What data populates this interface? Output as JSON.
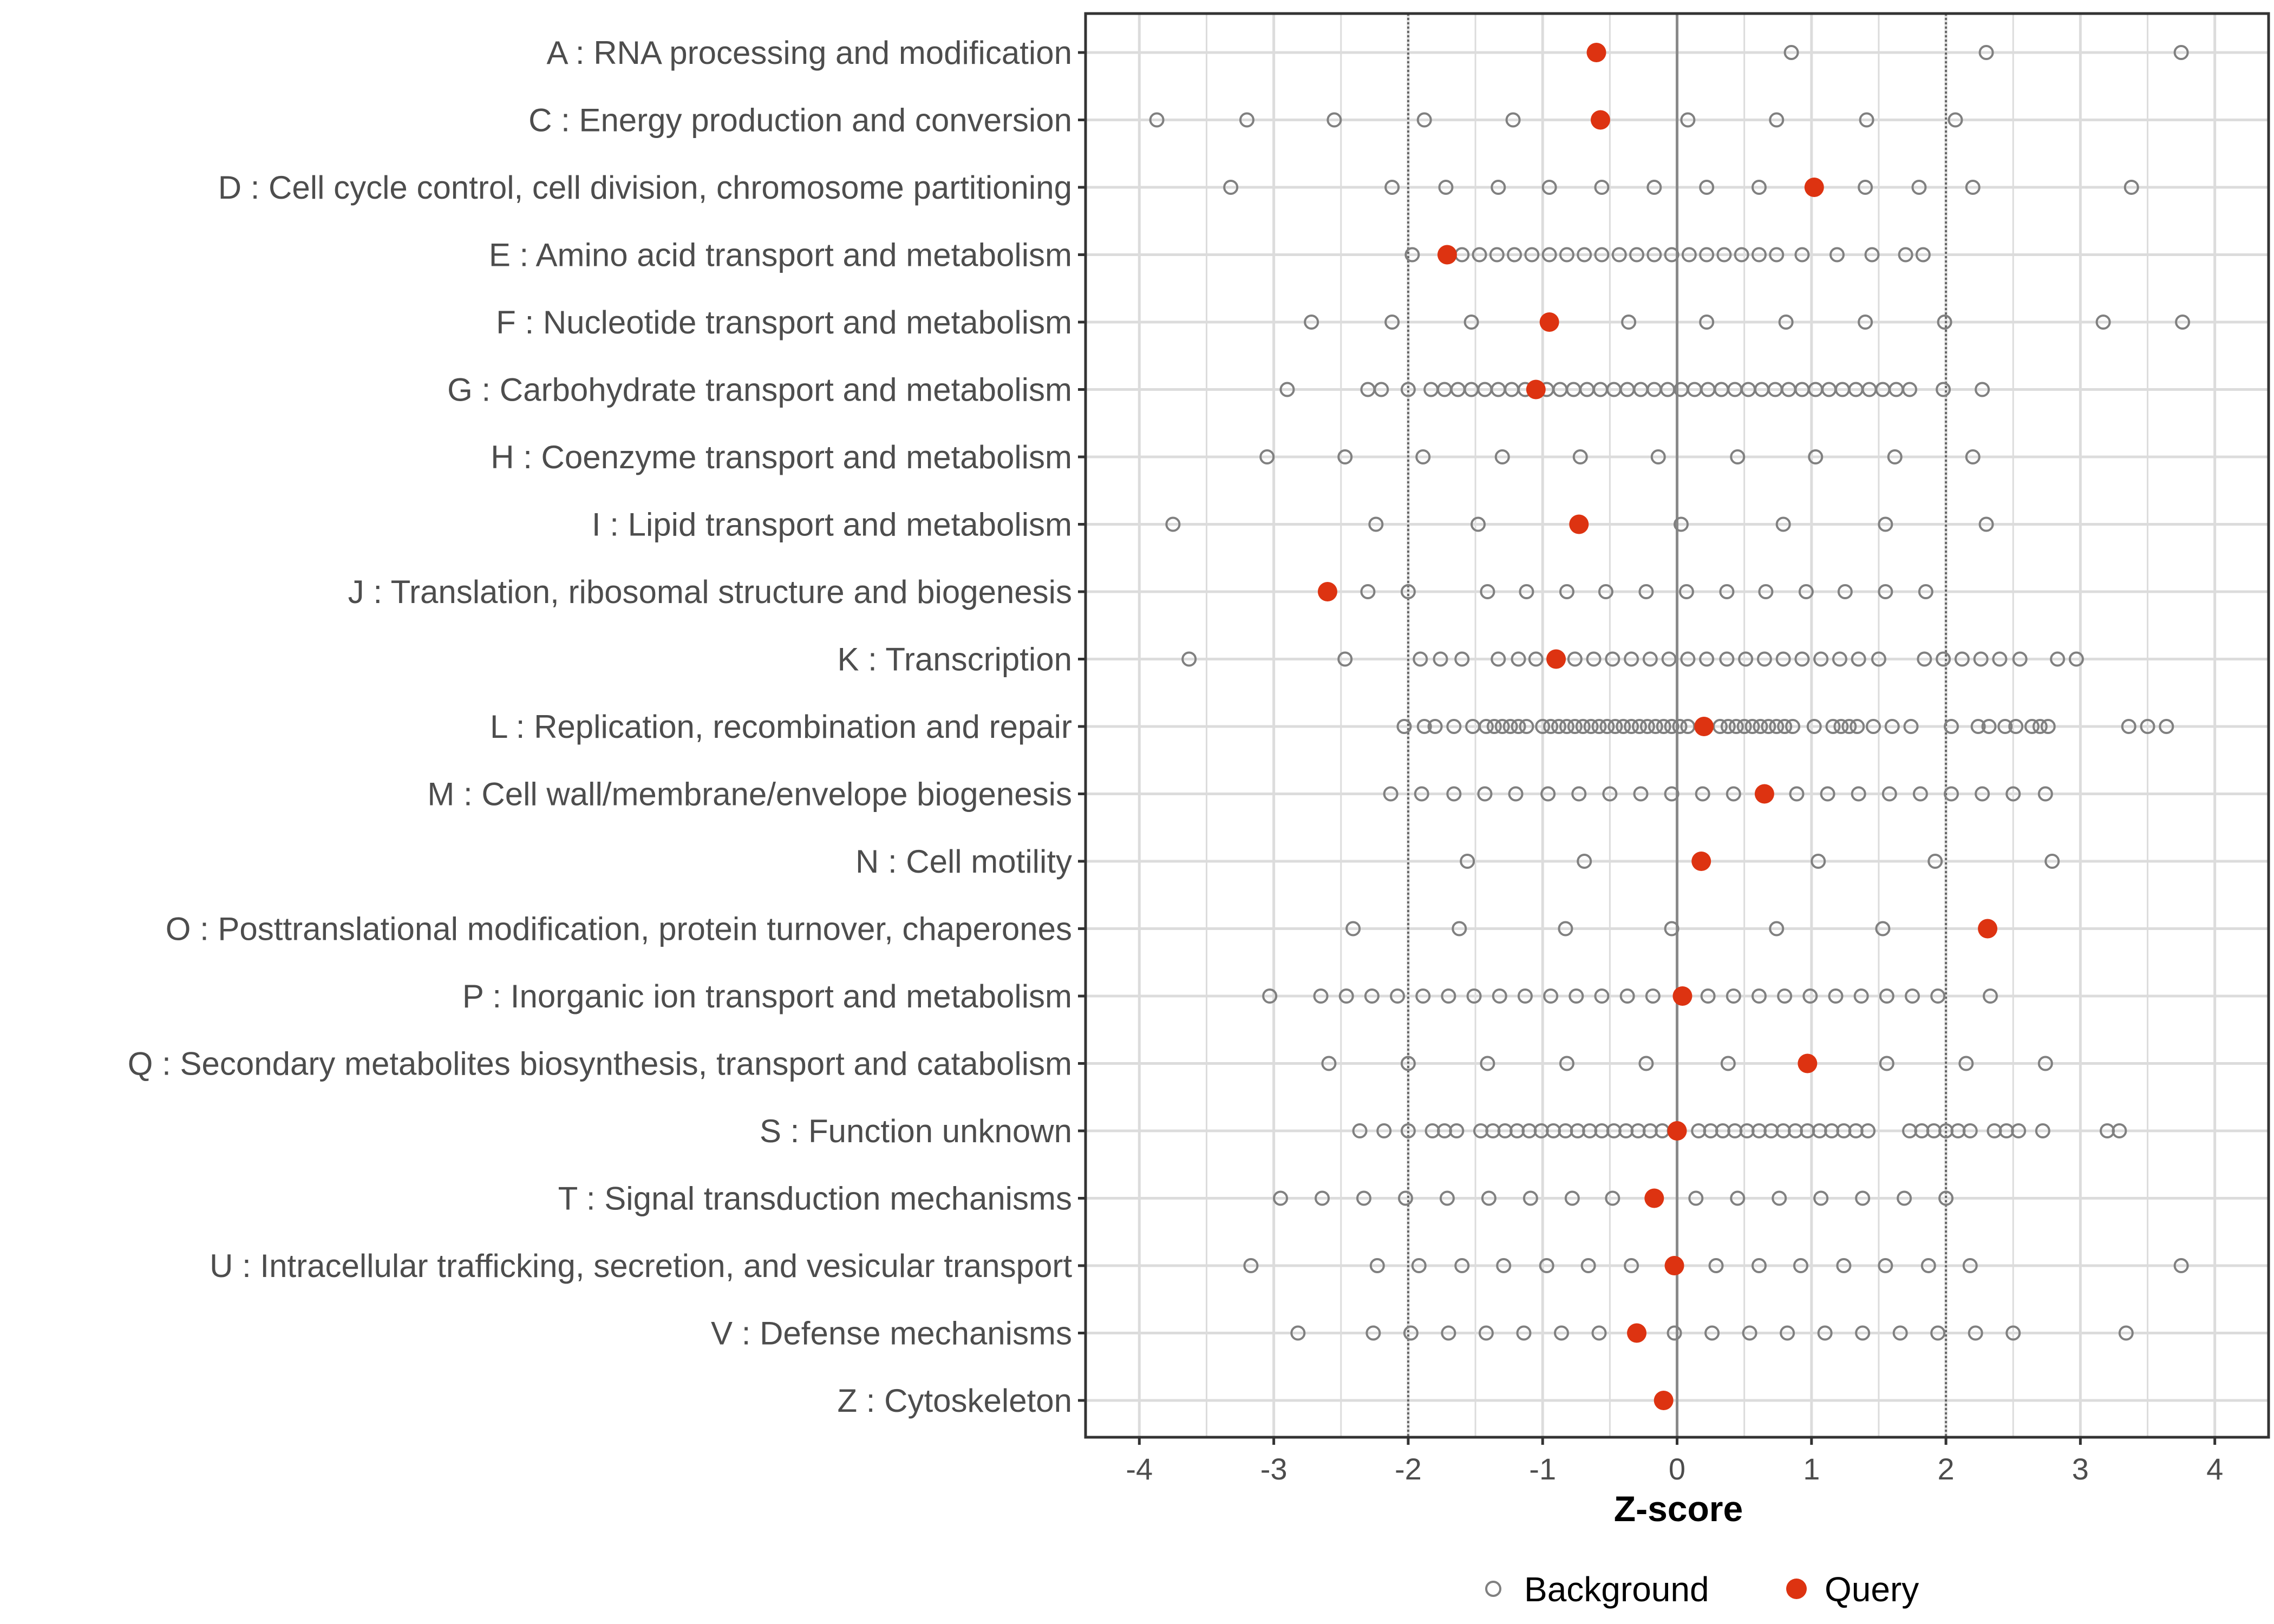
{
  "chart_data": {
    "type": "scatter",
    "xlabel": "Z-score",
    "ylabel": "",
    "xlim": [
      -4.4,
      4.4
    ],
    "x_ticks": [
      -4,
      -3,
      -2,
      -1,
      0,
      1,
      2,
      3,
      4
    ],
    "x_tick_labels": [
      "-4",
      "-3",
      "-2",
      "-1",
      "0",
      "1",
      "2",
      "3",
      "4"
    ],
    "reference_lines": [
      {
        "x": -2,
        "style": "dotted"
      },
      {
        "x": 0,
        "style": "solid"
      },
      {
        "x": 2,
        "style": "dotted"
      }
    ],
    "grid": true,
    "legend": {
      "position": "bottom",
      "entries": [
        {
          "label": "Background",
          "marker": "open-circle",
          "color": "#808080"
        },
        {
          "label": "Query",
          "marker": "filled-circle",
          "color": "#dd3311"
        }
      ]
    },
    "categories": [
      {
        "label": "A : RNA processing and modification",
        "query": -0.6,
        "background": [
          0.85,
          2.3,
          3.75
        ]
      },
      {
        "label": "C : Energy production and conversion",
        "query": -0.57,
        "background": [
          -3.87,
          -3.2,
          -2.55,
          -1.88,
          -1.22,
          0.08,
          0.74,
          1.41,
          2.07
        ]
      },
      {
        "label": "D : Cell cycle control, cell division, chromosome partitioning",
        "query": 1.02,
        "background": [
          -3.32,
          -2.12,
          -1.72,
          -1.33,
          -0.95,
          -0.56,
          -0.17,
          0.22,
          0.61,
          1.4,
          1.8,
          2.2,
          3.38
        ]
      },
      {
        "label": "E : Amino acid transport and metabolism",
        "query": -1.71,
        "background": [
          -1.97,
          -1.6,
          -1.47,
          -1.34,
          -1.21,
          -1.08,
          -0.95,
          -0.82,
          -0.69,
          -0.56,
          -0.43,
          -0.3,
          -0.17,
          -0.04,
          0.09,
          0.22,
          0.35,
          0.48,
          0.61,
          0.74,
          0.93,
          1.19,
          1.45,
          1.7,
          1.83
        ]
      },
      {
        "label": "F : Nucleotide transport and metabolism",
        "query": -0.95,
        "background": [
          -2.72,
          -2.12,
          -1.53,
          -0.36,
          0.22,
          0.81,
          1.4,
          1.99,
          3.17,
          3.76
        ]
      },
      {
        "label": "G : Carbohydrate transport and metabolism",
        "query": -1.05,
        "background": [
          -2.9,
          -2.3,
          -2.2,
          -2.0,
          -1.83,
          -1.73,
          -1.63,
          -1.53,
          -1.43,
          -1.33,
          -1.23,
          -1.13,
          -0.97,
          -0.87,
          -0.77,
          -0.67,
          -0.57,
          -0.47,
          -0.37,
          -0.27,
          -0.17,
          -0.07,
          0.03,
          0.13,
          0.23,
          0.33,
          0.43,
          0.53,
          0.63,
          0.73,
          0.83,
          0.93,
          1.03,
          1.13,
          1.23,
          1.33,
          1.43,
          1.53,
          1.63,
          1.73,
          1.98,
          2.27
        ]
      },
      {
        "label": "H : Coenzyme transport and metabolism",
        "query": null,
        "background": [
          -3.05,
          -2.47,
          -1.89,
          -1.3,
          -0.72,
          -0.14,
          0.45,
          1.03,
          1.62,
          2.2
        ]
      },
      {
        "label": "I : Lipid transport and metabolism",
        "query": -0.73,
        "background": [
          -3.75,
          -2.24,
          -1.48,
          0.03,
          0.79,
          1.55,
          2.3
        ]
      },
      {
        "label": "J : Translation, ribosomal structure and biogenesis",
        "query": -2.6,
        "background": [
          -2.3,
          -2.0,
          -1.41,
          -1.12,
          -0.82,
          -0.53,
          -0.23,
          0.07,
          0.37,
          0.66,
          0.96,
          1.25,
          1.55,
          1.85
        ]
      },
      {
        "label": "K : Transcription",
        "query": -0.9,
        "background": [
          -3.63,
          -2.47,
          -1.91,
          -1.76,
          -1.6,
          -1.33,
          -1.18,
          -1.05,
          -0.76,
          -0.62,
          -0.48,
          -0.34,
          -0.2,
          -0.06,
          0.08,
          0.22,
          0.37,
          0.51,
          0.65,
          0.79,
          0.93,
          1.07,
          1.21,
          1.35,
          1.5,
          1.84,
          1.98,
          2.12,
          2.26,
          2.4,
          2.55,
          2.83,
          2.97
        ]
      },
      {
        "label": "L : Replication, recombination and repair",
        "query": 0.2,
        "background": [
          -2.03,
          -1.88,
          -1.8,
          -1.66,
          -1.52,
          -1.42,
          -1.36,
          -1.3,
          -1.24,
          -1.18,
          -1.12,
          -1.0,
          -0.94,
          -0.88,
          -0.82,
          -0.76,
          -0.7,
          -0.64,
          -0.58,
          -0.52,
          -0.46,
          -0.4,
          -0.34,
          -0.28,
          -0.22,
          -0.16,
          -0.1,
          -0.04,
          0.02,
          0.08,
          0.32,
          0.38,
          0.44,
          0.5,
          0.56,
          0.62,
          0.68,
          0.74,
          0.8,
          0.86,
          1.02,
          1.16,
          1.22,
          1.28,
          1.34,
          1.46,
          1.6,
          1.74,
          2.04,
          2.24,
          2.32,
          2.44,
          2.52,
          2.64,
          2.7,
          2.76,
          3.36,
          3.5,
          3.64
        ]
      },
      {
        "label": "M : Cell wall/membrane/envelope biogenesis",
        "query": 0.65,
        "background": [
          -2.13,
          -1.9,
          -1.66,
          -1.43,
          -1.2,
          -0.96,
          -0.73,
          -0.5,
          -0.27,
          -0.04,
          0.19,
          0.42,
          0.89,
          1.12,
          1.35,
          1.58,
          1.81,
          2.04,
          2.27,
          2.5,
          2.74
        ]
      },
      {
        "label": "N : Cell motility",
        "query": 0.18,
        "background": [
          -1.56,
          -0.69,
          1.05,
          1.92,
          2.79
        ]
      },
      {
        "label": "O : Posttranslational modification, protein turnover, chaperones",
        "query": 2.31,
        "background": [
          -2.41,
          -1.62,
          -0.83,
          -0.04,
          0.74,
          1.53
        ]
      },
      {
        "label": "P : Inorganic ion transport and metabolism",
        "query": 0.04,
        "background": [
          -3.03,
          -2.65,
          -2.46,
          -2.27,
          -2.08,
          -1.89,
          -1.7,
          -1.51,
          -1.32,
          -1.13,
          -0.94,
          -0.75,
          -0.56,
          -0.37,
          -0.18,
          0.23,
          0.42,
          0.61,
          0.8,
          0.99,
          1.18,
          1.37,
          1.56,
          1.75,
          1.94,
          2.33
        ]
      },
      {
        "label": "Q : Secondary metabolites biosynthesis, transport and catabolism",
        "query": 0.97,
        "background": [
          -2.59,
          -2.0,
          -1.41,
          -0.82,
          -0.23,
          0.38,
          1.56,
          2.15,
          2.74
        ]
      },
      {
        "label": "S : Function unknown",
        "query": 0.0,
        "background": [
          -2.36,
          -2.18,
          -2.0,
          -1.82,
          -1.73,
          -1.64,
          -1.46,
          -1.37,
          -1.28,
          -1.19,
          -1.1,
          -1.01,
          -0.92,
          -0.83,
          -0.74,
          -0.65,
          -0.56,
          -0.47,
          -0.38,
          -0.29,
          -0.2,
          -0.11,
          -0.02,
          0.16,
          0.25,
          0.34,
          0.43,
          0.52,
          0.61,
          0.7,
          0.79,
          0.88,
          0.97,
          1.06,
          1.15,
          1.24,
          1.33,
          1.42,
          1.73,
          1.82,
          1.91,
          2.0,
          2.09,
          2.18,
          2.36,
          2.45,
          2.54,
          2.72,
          3.2,
          3.29
        ]
      },
      {
        "label": "T : Signal transduction mechanisms",
        "query": -0.17,
        "background": [
          -2.95,
          -2.64,
          -2.33,
          -2.02,
          -1.71,
          -1.4,
          -1.09,
          -0.78,
          -0.48,
          0.14,
          0.45,
          0.76,
          1.07,
          1.38,
          1.69,
          2.0
        ]
      },
      {
        "label": "U : Intracellular trafficking, secretion, and vesicular transport",
        "query": -0.02,
        "background": [
          -3.17,
          -2.23,
          -1.92,
          -1.6,
          -1.29,
          -0.97,
          -0.66,
          -0.34,
          0.29,
          0.61,
          0.92,
          1.24,
          1.55,
          1.87,
          2.18,
          3.75
        ]
      },
      {
        "label": "V : Defense mechanisms",
        "query": -0.3,
        "background": [
          -2.82,
          -2.26,
          -1.98,
          -1.7,
          -1.42,
          -1.14,
          -0.86,
          -0.58,
          -0.02,
          0.26,
          0.54,
          0.82,
          1.1,
          1.38,
          1.66,
          1.94,
          2.22,
          2.5,
          3.34
        ]
      },
      {
        "label": "Z : Cytoskeleton",
        "query": -0.1,
        "background": []
      }
    ]
  }
}
